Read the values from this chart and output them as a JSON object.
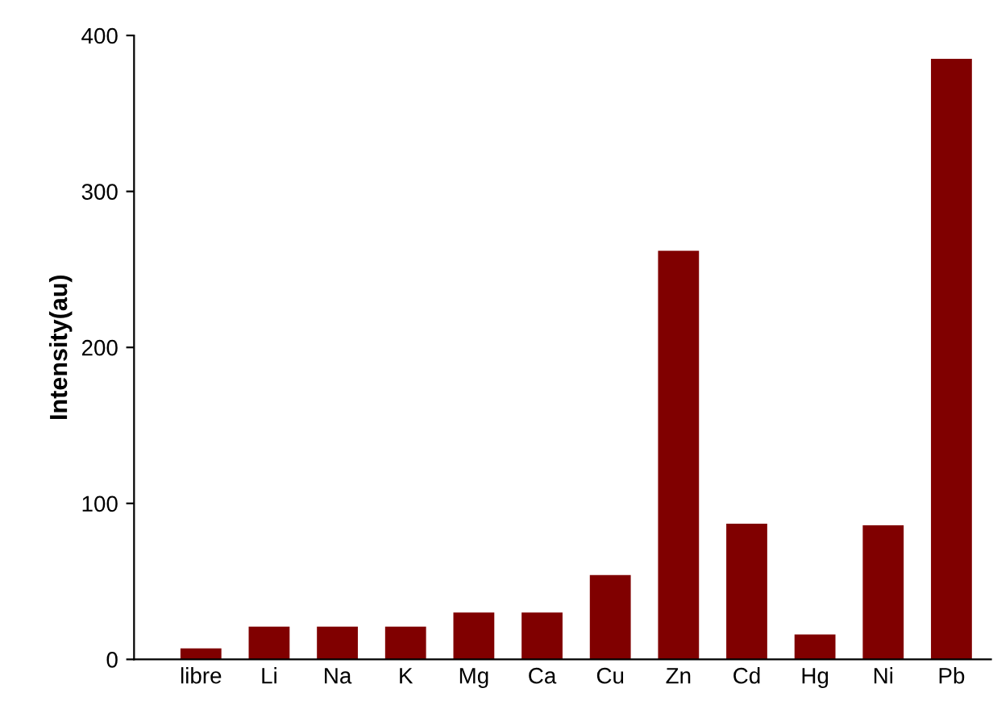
{
  "chart_data": {
    "type": "bar",
    "ylabel": "Intensity(au)",
    "categories": [
      "libre",
      "Li",
      "Na",
      "K",
      "Mg",
      "Ca",
      "Cu",
      "Zn",
      "Cd",
      "Hg",
      "Ni",
      "Pb"
    ],
    "values": [
      7,
      21,
      21,
      21,
      30,
      30,
      54,
      262,
      87,
      16,
      86,
      385
    ],
    "color": "#800000",
    "ylim": [
      0,
      400
    ],
    "yticks": [
      0,
      100,
      200,
      300,
      400
    ],
    "grid": false,
    "legend": false
  }
}
